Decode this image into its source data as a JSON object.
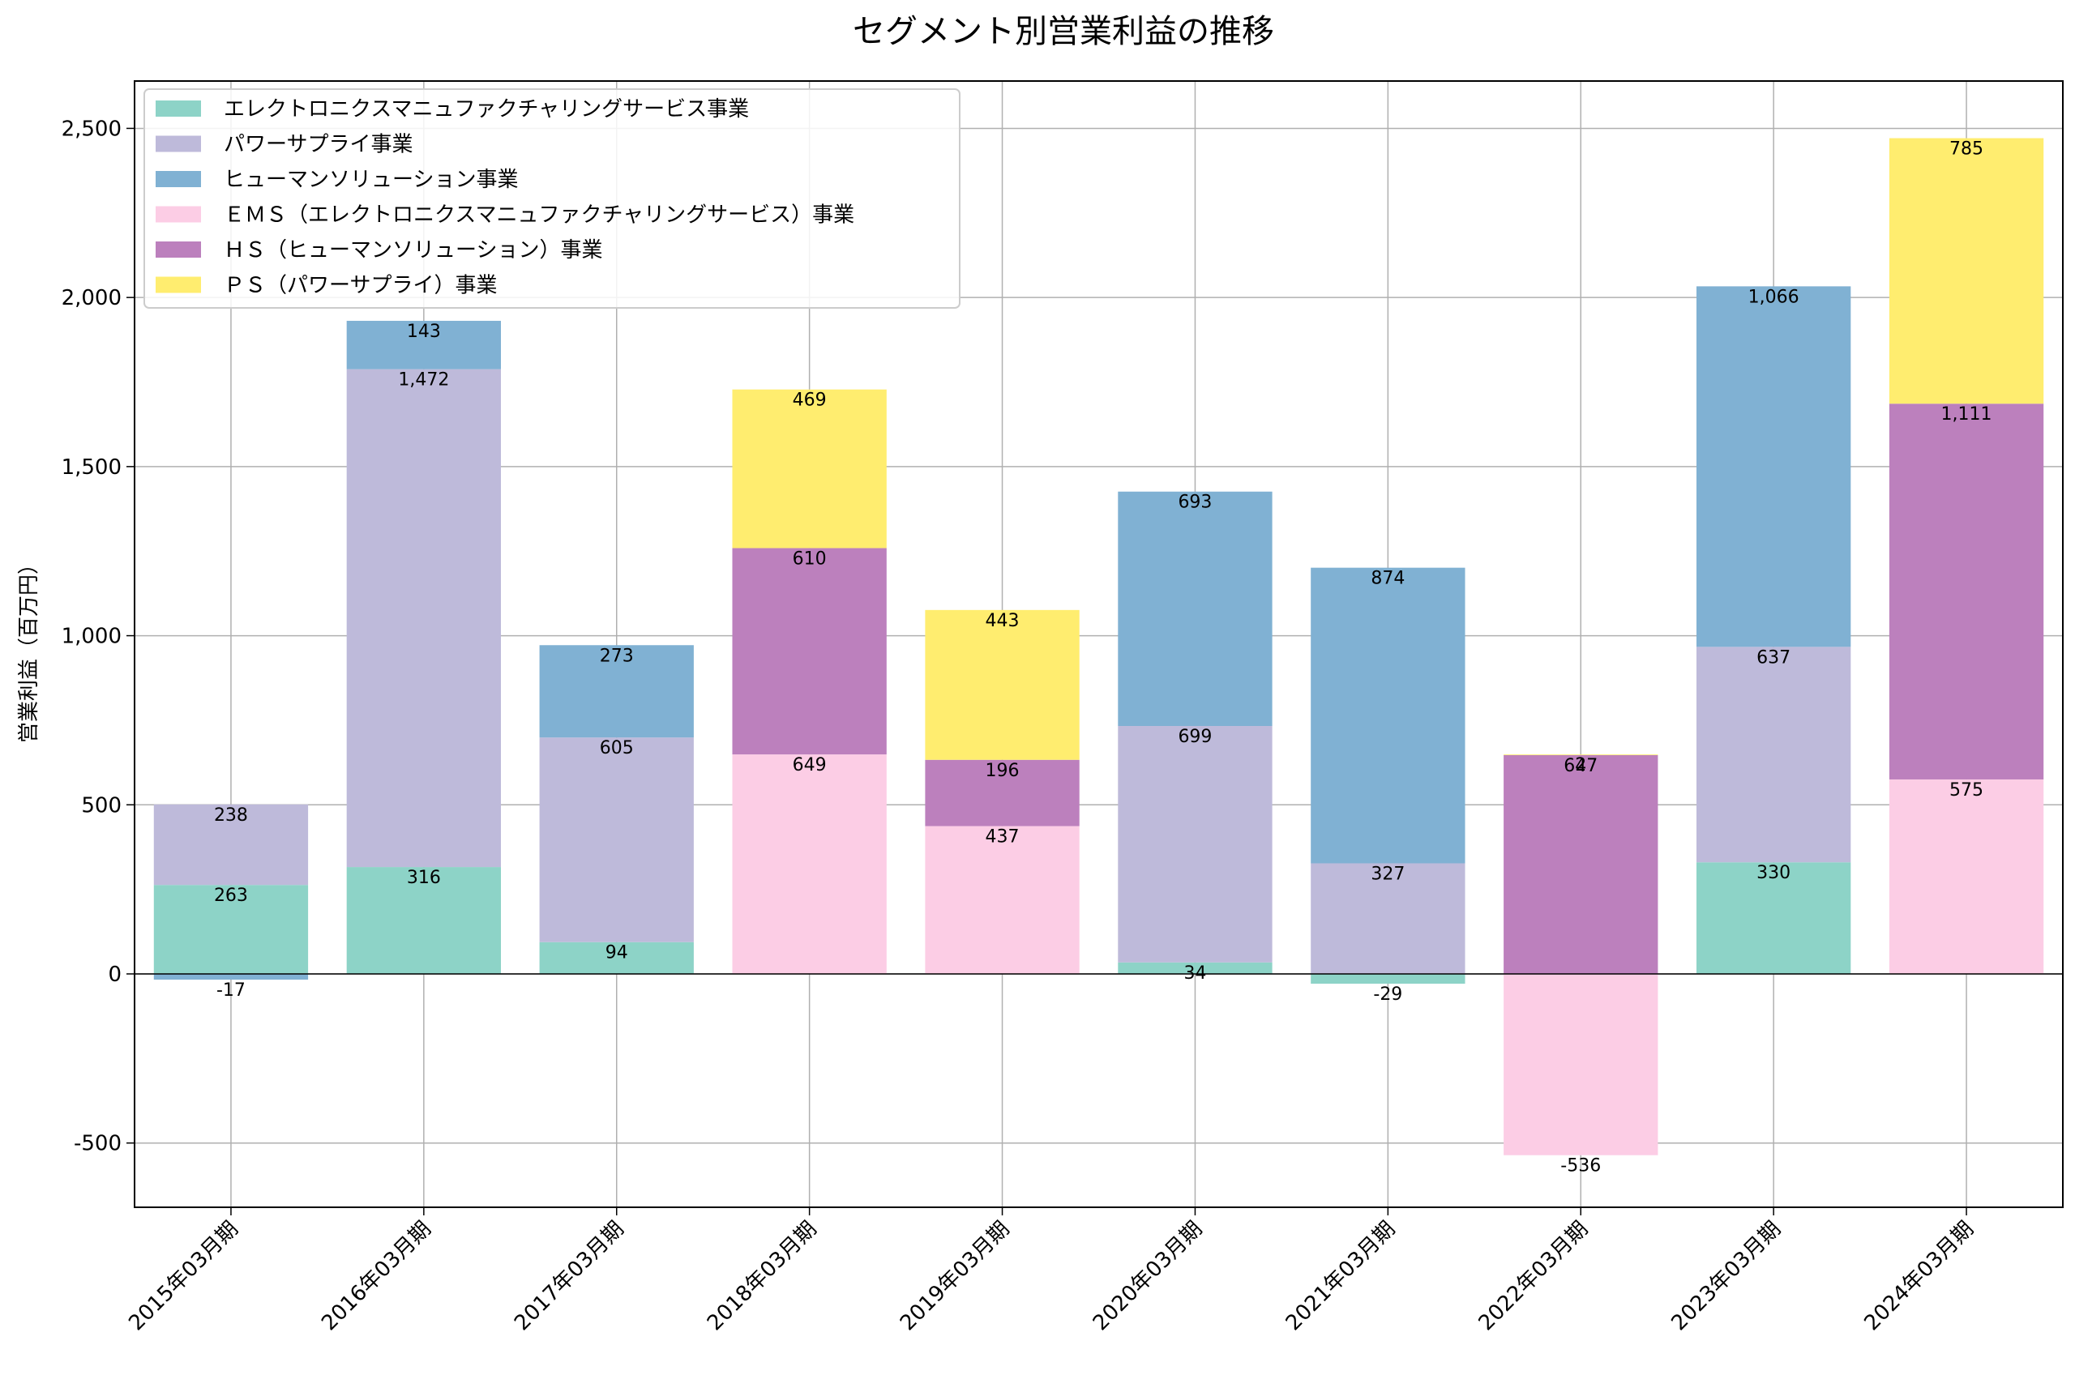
{
  "chart_data": {
    "type": "bar",
    "stacked": true,
    "title": "セグメント別営業利益の推移",
    "xlabel": "",
    "ylabel": "営業利益（百万円）",
    "ylim": [
      -690,
      2640
    ],
    "yticks": [
      -500,
      0,
      500,
      1000,
      1500,
      2000,
      2500
    ],
    "ytick_labels": [
      "-500",
      "0",
      "500",
      "1,000",
      "1,500",
      "2,000",
      "2,500"
    ],
    "grid": true,
    "legend_position": "upper-left",
    "categories": [
      "2015年03月期",
      "2016年03月期",
      "2017年03月期",
      "2018年03月期",
      "2019年03月期",
      "2020年03月期",
      "2021年03月期",
      "2022年03月期",
      "2023年03月期",
      "2024年03月期"
    ],
    "series": [
      {
        "name": "エレクトロニクスマニュファクチャリングサービス事業",
        "color": "#8dd3c7",
        "values": [
          263,
          316,
          94,
          null,
          null,
          34,
          -29,
          null,
          330,
          null
        ]
      },
      {
        "name": "パワーサプライ事業",
        "color": "#bebada",
        "values": [
          238,
          1472,
          605,
          null,
          null,
          699,
          327,
          null,
          637,
          null
        ]
      },
      {
        "name": "ヒューマンソリューション事業",
        "color": "#80b1d3",
        "values": [
          -17,
          143,
          273,
          null,
          null,
          693,
          874,
          null,
          1066,
          null
        ]
      },
      {
        "name": "ＥＭＳ（エレクトロニクスマニュファクチャリングサービス）事業",
        "color": "#fccde5",
        "values": [
          null,
          null,
          null,
          649,
          437,
          null,
          null,
          -536,
          null,
          575
        ]
      },
      {
        "name": "ＨＳ（ヒューマンソリューション）事業",
        "color": "#bc80bd",
        "values": [
          null,
          null,
          null,
          610,
          196,
          null,
          null,
          647,
          null,
          1111
        ]
      },
      {
        "name": "ＰＳ（パワーサプライ）事業",
        "color": "#ffed6f",
        "values": [
          null,
          null,
          null,
          469,
          443,
          null,
          null,
          2,
          null,
          785
        ]
      }
    ]
  }
}
